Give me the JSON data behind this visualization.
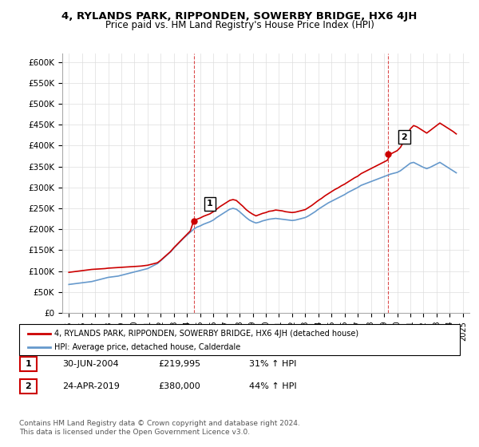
{
  "title": "4, RYLANDS PARK, RIPPONDEN, SOWERBY BRIDGE, HX6 4JH",
  "subtitle": "Price paid vs. HM Land Registry's House Price Index (HPI)",
  "ylabel_ticks": [
    0,
    50000,
    100000,
    150000,
    200000,
    250000,
    300000,
    350000,
    400000,
    450000,
    500000,
    550000,
    600000
  ],
  "ylabel_labels": [
    "£0",
    "£50K",
    "£100K",
    "£150K",
    "£200K",
    "£250K",
    "£300K",
    "£350K",
    "£400K",
    "£450K",
    "£500K",
    "£550K",
    "£600K"
  ],
  "xlim": [
    1994.5,
    2025.5
  ],
  "ylim": [
    0,
    620000
  ],
  "red_color": "#cc0000",
  "blue_color": "#6699cc",
  "sale1_x": 2004.5,
  "sale1_y": 219995,
  "sale2_x": 2019.3,
  "sale2_y": 380000,
  "legend_label_red": "4, RYLANDS PARK, RIPPONDEN, SOWERBY BRIDGE, HX6 4JH (detached house)",
  "legend_label_blue": "HPI: Average price, detached house, Calderdale",
  "table_row1": [
    "1",
    "30-JUN-2004",
    "£219,995",
    "31% ↑ HPI"
  ],
  "table_row2": [
    "2",
    "24-APR-2019",
    "£380,000",
    "44% ↑ HPI"
  ],
  "footnote1": "Contains HM Land Registry data © Crown copyright and database right 2024.",
  "footnote2": "This data is licensed under the Open Government Licence v3.0.",
  "hpi_years": [
    1995,
    1995.25,
    1995.5,
    1995.75,
    1996,
    1996.25,
    1996.5,
    1996.75,
    1997,
    1997.25,
    1997.5,
    1997.75,
    1998,
    1998.25,
    1998.5,
    1998.75,
    1999,
    1999.25,
    1999.5,
    1999.75,
    2000,
    2000.25,
    2000.5,
    2000.75,
    2001,
    2001.25,
    2001.5,
    2001.75,
    2002,
    2002.25,
    2002.5,
    2002.75,
    2003,
    2003.25,
    2003.5,
    2003.75,
    2004,
    2004.25,
    2004.5,
    2004.75,
    2005,
    2005.25,
    2005.5,
    2005.75,
    2006,
    2006.25,
    2006.5,
    2006.75,
    2007,
    2007.25,
    2007.5,
    2007.75,
    2008,
    2008.25,
    2008.5,
    2008.75,
    2009,
    2009.25,
    2009.5,
    2009.75,
    2010,
    2010.25,
    2010.5,
    2010.75,
    2011,
    2011.25,
    2011.5,
    2011.75,
    2012,
    2012.25,
    2012.5,
    2012.75,
    2013,
    2013.25,
    2013.5,
    2013.75,
    2014,
    2014.25,
    2014.5,
    2014.75,
    2015,
    2015.25,
    2015.5,
    2015.75,
    2016,
    2016.25,
    2016.5,
    2016.75,
    2017,
    2017.25,
    2017.5,
    2017.75,
    2018,
    2018.25,
    2018.5,
    2018.75,
    2019,
    2019.25,
    2019.5,
    2019.75,
    2020,
    2020.25,
    2020.5,
    2020.75,
    2021,
    2021.25,
    2021.5,
    2021.75,
    2022,
    2022.25,
    2022.5,
    2022.75,
    2023,
    2023.25,
    2023.5,
    2023.75,
    2024,
    2024.25,
    2024.5
  ],
  "hpi_values": [
    68000,
    69000,
    70000,
    71000,
    72000,
    73000,
    74000,
    75000,
    77000,
    79000,
    81000,
    83000,
    85000,
    86000,
    87000,
    88000,
    90000,
    92000,
    94000,
    96000,
    98000,
    100000,
    102000,
    104000,
    106000,
    110000,
    114000,
    118000,
    125000,
    132000,
    139000,
    146000,
    155000,
    163000,
    171000,
    179000,
    186000,
    193000,
    200000,
    205000,
    208000,
    212000,
    215000,
    218000,
    222000,
    228000,
    233000,
    238000,
    243000,
    248000,
    250000,
    248000,
    242000,
    235000,
    228000,
    222000,
    218000,
    215000,
    217000,
    220000,
    222000,
    224000,
    225000,
    226000,
    225000,
    224000,
    223000,
    222000,
    221000,
    222000,
    224000,
    226000,
    228000,
    232000,
    237000,
    242000,
    248000,
    253000,
    258000,
    263000,
    267000,
    271000,
    275000,
    279000,
    283000,
    288000,
    292000,
    296000,
    300000,
    305000,
    308000,
    311000,
    314000,
    317000,
    320000,
    323000,
    326000,
    329000,
    332000,
    334000,
    336000,
    340000,
    346000,
    352000,
    358000,
    360000,
    356000,
    352000,
    348000,
    345000,
    348000,
    352000,
    356000,
    360000,
    355000,
    350000,
    345000,
    340000,
    335000
  ],
  "red_years": [
    1995,
    1995.25,
    1995.5,
    1995.75,
    1996,
    1996.25,
    1996.5,
    1996.75,
    1997,
    1997.25,
    1997.5,
    1997.75,
    1998,
    1998.25,
    1998.5,
    1998.75,
    1999,
    1999.25,
    1999.5,
    1999.75,
    2000,
    2000.25,
    2000.5,
    2000.75,
    2001,
    2001.25,
    2001.5,
    2001.75,
    2002,
    2002.25,
    2002.5,
    2002.75,
    2003,
    2003.25,
    2003.5,
    2003.75,
    2004,
    2004.25,
    2004.5,
    2004.75,
    2005,
    2005.25,
    2005.5,
    2005.75,
    2006,
    2006.25,
    2006.5,
    2006.75,
    2007,
    2007.25,
    2007.5,
    2007.75,
    2008,
    2008.25,
    2008.5,
    2008.75,
    2009,
    2009.25,
    2009.5,
    2009.75,
    2010,
    2010.25,
    2010.5,
    2010.75,
    2011,
    2011.25,
    2011.5,
    2011.75,
    2012,
    2012.25,
    2012.5,
    2012.75,
    2013,
    2013.25,
    2013.5,
    2013.75,
    2014,
    2014.25,
    2014.5,
    2014.75,
    2015,
    2015.25,
    2015.5,
    2015.75,
    2016,
    2016.25,
    2016.5,
    2016.75,
    2017,
    2017.25,
    2017.5,
    2017.75,
    2018,
    2018.25,
    2018.5,
    2018.75,
    2019,
    2019.25,
    2019.5,
    2019.75,
    2020,
    2020.25,
    2020.5,
    2020.75,
    2021,
    2021.25,
    2021.5,
    2021.75,
    2022,
    2022.25,
    2022.5,
    2022.75,
    2023,
    2023.25,
    2023.5,
    2023.75,
    2024,
    2024.25,
    2024.5
  ],
  "red_values": [
    97000,
    98000,
    99000,
    100000,
    101000,
    102000,
    103000,
    104000,
    104500,
    105000,
    105500,
    106000,
    107000,
    107500,
    108000,
    108500,
    109000,
    109500,
    110000,
    110500,
    111000,
    111500,
    112000,
    113000,
    114000,
    116000,
    118000,
    120000,
    126000,
    133000,
    140000,
    147000,
    156000,
    164000,
    172000,
    180000,
    188000,
    196000,
    219995,
    224000,
    227000,
    231000,
    234000,
    237000,
    242000,
    248000,
    254000,
    259000,
    264000,
    269000,
    271000,
    269000,
    262000,
    255000,
    247000,
    241000,
    236000,
    232000,
    235000,
    238000,
    240000,
    243000,
    244000,
    246000,
    245000,
    244000,
    242000,
    241000,
    240000,
    241000,
    243000,
    245000,
    247000,
    252000,
    257000,
    263000,
    269000,
    274000,
    280000,
    285000,
    290000,
    295000,
    299000,
    304000,
    308000,
    313000,
    318000,
    323000,
    327000,
    333000,
    337000,
    341000,
    345000,
    349000,
    353000,
    357000,
    361000,
    365000,
    380000,
    384000,
    388000,
    396000,
    410000,
    424000,
    440000,
    448000,
    445000,
    440000,
    435000,
    430000,
    436000,
    442000,
    448000,
    454000,
    449000,
    444000,
    439000,
    434000,
    428000
  ]
}
